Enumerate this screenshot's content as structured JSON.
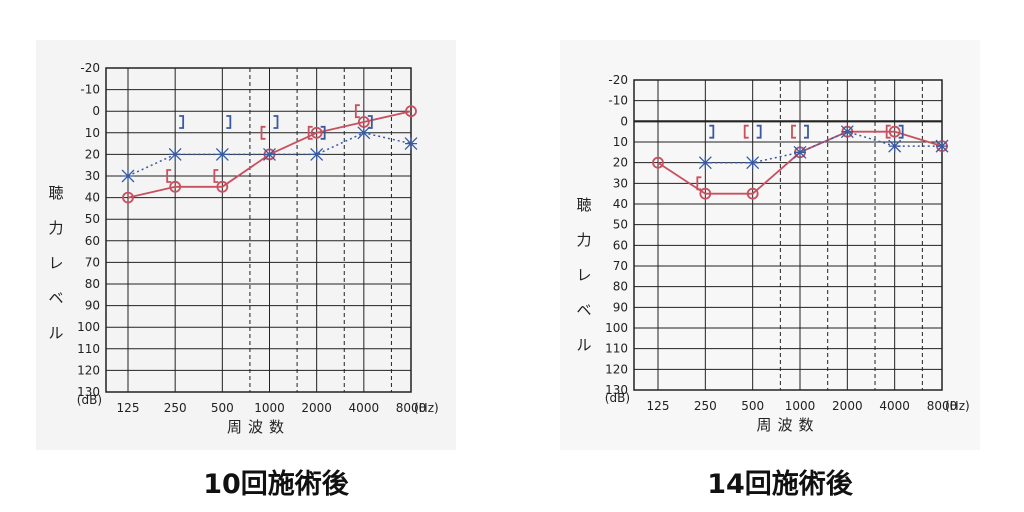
{
  "chart_data": [
    {
      "type": "line",
      "title": "",
      "caption": "10回施術後",
      "ylabel": "聴力レベル",
      "y_unit": "(dB)",
      "xlabel": "周波数",
      "x_unit": "(Hz)",
      "x_ticks": [
        "125",
        "250",
        "500",
        "1000",
        "2000",
        "4000",
        "8000"
      ],
      "y_ticks": [
        "-20",
        "-10",
        "0",
        "10",
        "20",
        "30",
        "40",
        "50",
        "60",
        "70",
        "80",
        "90",
        "100",
        "110",
        "120",
        "130"
      ],
      "ylim": [
        -20,
        130
      ],
      "y_inverted": true,
      "series": [
        {
          "marker": "circle",
          "color": "#c8505f",
          "line": "solid",
          "points": [
            [
              125,
              40
            ],
            [
              250,
              35
            ],
            [
              500,
              35
            ],
            [
              1000,
              20
            ],
            [
              2000,
              10
            ],
            [
              4000,
              5
            ],
            [
              8000,
              0
            ]
          ]
        },
        {
          "marker": "x",
          "color": "#3a5aa0",
          "line": "dotted",
          "points": [
            [
              125,
              30
            ],
            [
              250,
              20
            ],
            [
              500,
              20
            ],
            [
              1000,
              20
            ],
            [
              2000,
              20
            ],
            [
              4000,
              10
            ],
            [
              8000,
              15
            ]
          ]
        },
        {
          "marker": "bracket-right",
          "color": "#3a5aa0",
          "points": [
            [
              250,
              5
            ],
            [
              500,
              5
            ],
            [
              1000,
              5
            ],
            [
              2000,
              10
            ],
            [
              4000,
              5
            ]
          ]
        },
        {
          "marker": "bracket-left",
          "color": "#c8505f",
          "points": [
            [
              250,
              30
            ],
            [
              500,
              30
            ],
            [
              1000,
              10
            ],
            [
              2000,
              10
            ],
            [
              4000,
              0
            ]
          ]
        }
      ]
    },
    {
      "type": "line",
      "title": "",
      "caption": "14回施術後",
      "ylabel": "聴力レベル",
      "y_unit": "(dB)",
      "xlabel": "周波数",
      "x_unit": "(Hz)",
      "x_ticks": [
        "125",
        "250",
        "500",
        "1000",
        "2000",
        "4000",
        "8000"
      ],
      "y_ticks": [
        "-20",
        "-10",
        "0",
        "10",
        "20",
        "30",
        "40",
        "50",
        "60",
        "70",
        "80",
        "90",
        "100",
        "110",
        "120",
        "130"
      ],
      "ylim": [
        -20,
        130
      ],
      "y_inverted": true,
      "series": [
        {
          "marker": "circle",
          "color": "#c8505f",
          "line": "solid",
          "points": [
            [
              125,
              20
            ],
            [
              250,
              35
            ],
            [
              500,
              35
            ],
            [
              1000,
              15
            ],
            [
              2000,
              5
            ],
            [
              4000,
              5
            ],
            [
              8000,
              12
            ]
          ]
        },
        {
          "marker": "x",
          "color": "#3a5aa0",
          "line": "dotted",
          "points": [
            [
              250,
              20
            ],
            [
              500,
              20
            ],
            [
              1000,
              15
            ],
            [
              2000,
              5
            ],
            [
              4000,
              12
            ],
            [
              8000,
              12
            ]
          ]
        },
        {
          "marker": "bracket-right",
          "color": "#3a5aa0",
          "points": [
            [
              250,
              5
            ],
            [
              500,
              5
            ],
            [
              1000,
              5
            ],
            [
              4000,
              5
            ]
          ]
        },
        {
          "marker": "bracket-left",
          "color": "#c8505f",
          "points": [
            [
              250,
              30
            ],
            [
              500,
              5
            ],
            [
              1000,
              5
            ],
            [
              4000,
              5
            ]
          ]
        }
      ]
    }
  ],
  "captions": {
    "left": "10回施術後",
    "right": "14回施術後"
  }
}
